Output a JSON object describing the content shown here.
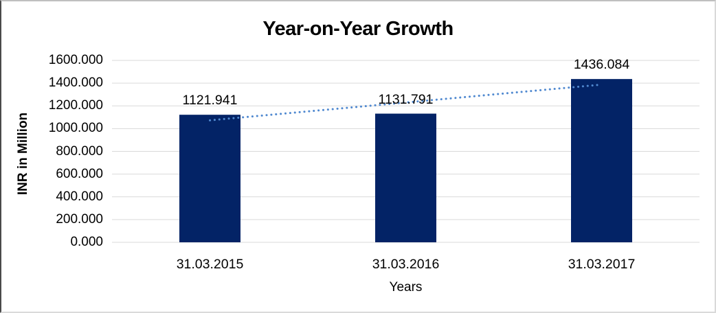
{
  "chart_data": {
    "type": "bar",
    "title": "Year-on-Year Growth",
    "categories": [
      "31.03.2015",
      "31.03.2016",
      "31.03.2017"
    ],
    "values": [
      1121.941,
      1131.791,
      1436.084
    ],
    "data_labels": [
      "1121.941",
      "1131.791",
      "1436.084"
    ],
    "xlabel": "Years",
    "ylabel": "INR in Million",
    "ylim": [
      0,
      1600
    ],
    "ytick_step": 200,
    "ytick_labels": [
      "0.000",
      "200.000",
      "400.000",
      "600.000",
      "800.000",
      "1000.000",
      "1200.000",
      "1400.000",
      "1600.000"
    ],
    "grid": true,
    "legend": "none",
    "bar_color": "#032366",
    "gridline_color": "#d9d9d9",
    "trendline": {
      "type": "linear",
      "style": "dotted",
      "color": "#5089d0",
      "span": "first-to-last-point"
    }
  }
}
